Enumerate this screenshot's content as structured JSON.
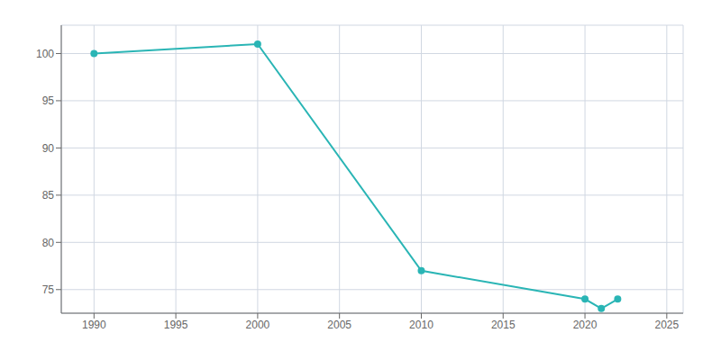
{
  "chart_data": {
    "type": "line",
    "x": [
      1990,
      2000,
      2010,
      2020,
      2021,
      2022
    ],
    "values": [
      100,
      101,
      77,
      74,
      73,
      74
    ],
    "color": "#2ab5b5",
    "marker": "circle",
    "xlim": [
      1988,
      2026
    ],
    "ylim": [
      72.5,
      103
    ],
    "xticks": [
      1990,
      1995,
      2000,
      2005,
      2010,
      2015,
      2020,
      2025
    ],
    "yticks": [
      75,
      80,
      85,
      90,
      95,
      100
    ],
    "grid": true
  }
}
